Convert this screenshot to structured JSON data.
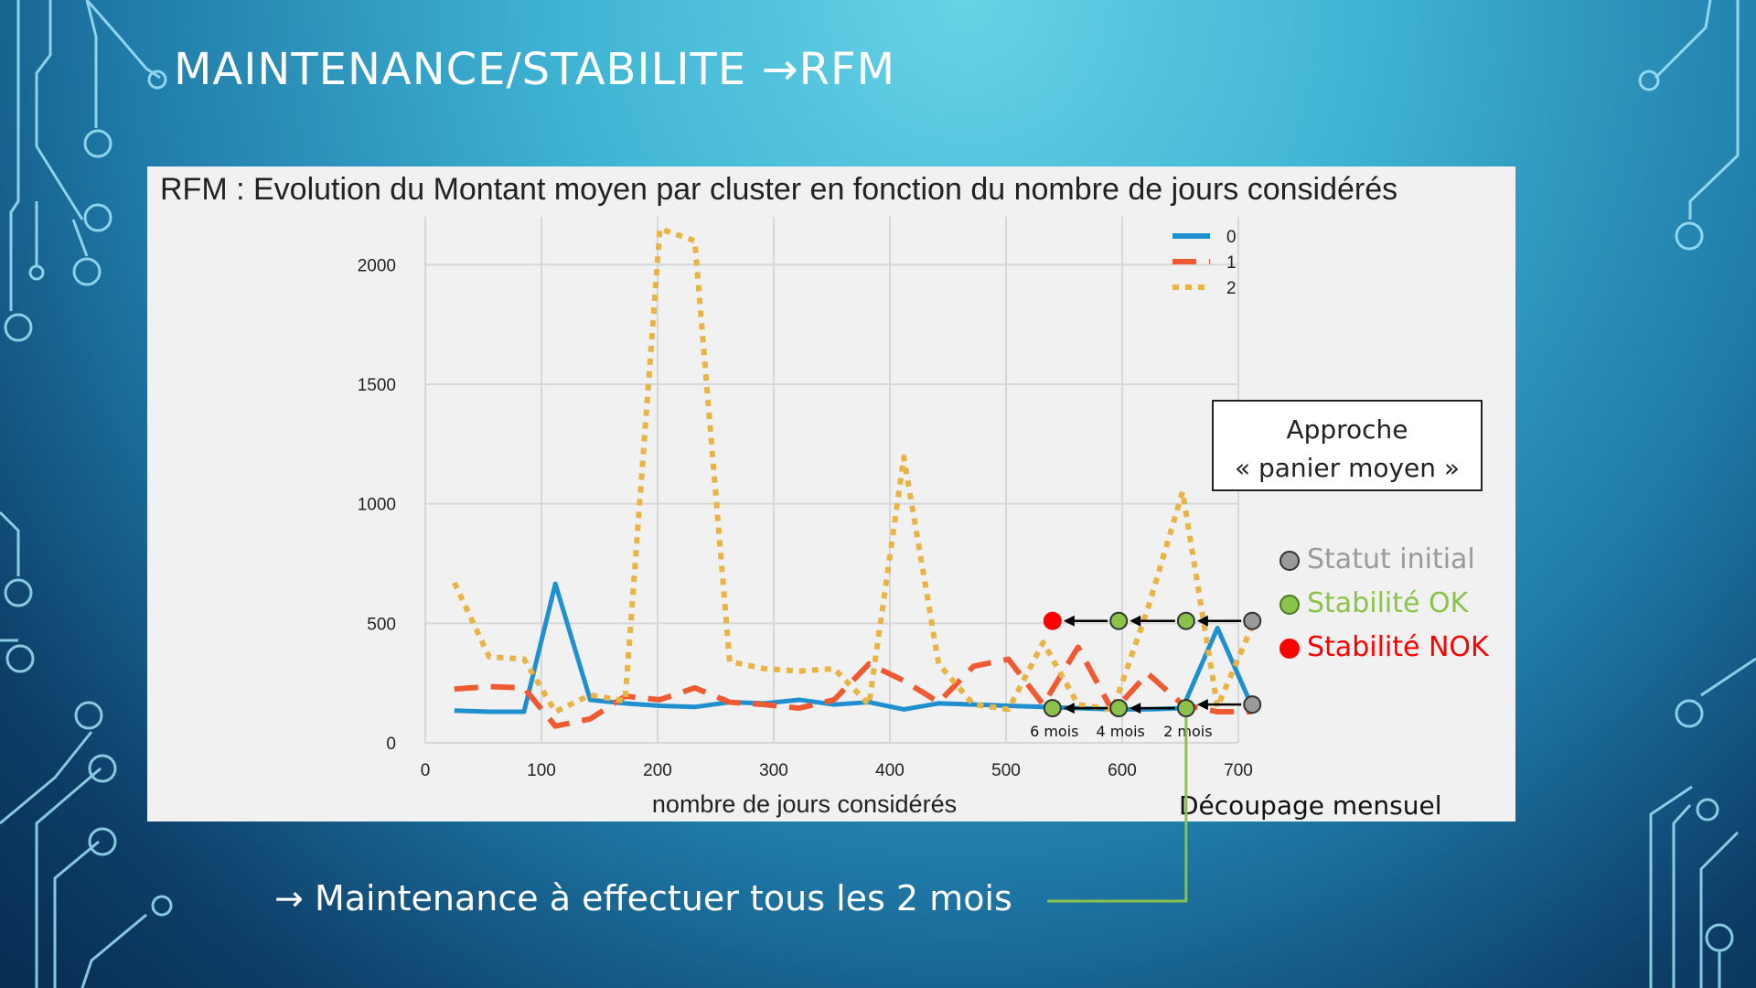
{
  "slide": {
    "title": "MAINTENANCE/STABILITE →RFM",
    "conclusion_arrow": "→",
    "conclusion_text": "Maintenance à effectuer tous les 2 mois"
  },
  "annotations": {
    "approach_line1": "Approche",
    "approach_line2": "« panier moyen »",
    "decoupage": "Découpage mensuel",
    "status": [
      {
        "label": "Statut initial",
        "color": "#9a9a9a",
        "dot": "#9a9a9a"
      },
      {
        "label": "Stabilité OK",
        "color": "#8bc34a",
        "dot": "#8bc34a"
      },
      {
        "label": "Stabilité NOK",
        "color": "#ff0000",
        "dot": "#ff0000"
      }
    ],
    "month_labels": [
      "6 mois",
      "4 mois",
      "2 mois"
    ],
    "colors": {
      "ok": "#8bc34a",
      "nok": "#ff0000",
      "initial": "#9a9a9a",
      "connector": "#8bc34a"
    }
  },
  "chart_data": {
    "type": "line",
    "title": "RFM : Evolution du Montant moyen par cluster en fonction du nombre de jours considérés",
    "xlabel": "nombre de jours considérés",
    "ylabel": "",
    "xlim": [
      0,
      700
    ],
    "ylim": [
      0,
      2200
    ],
    "xticks": [
      0,
      100,
      200,
      300,
      400,
      500,
      600,
      700
    ],
    "yticks": [
      0,
      500,
      1000,
      1500,
      2000
    ],
    "grid": true,
    "legend_position": "top-right",
    "x": [
      25,
      55,
      85,
      112,
      142,
      172,
      202,
      232,
      262,
      292,
      322,
      352,
      382,
      412,
      442,
      472,
      502,
      532,
      562,
      592,
      622,
      652,
      682,
      712
    ],
    "series": [
      {
        "name": "0",
        "color": "#1f8fcf",
        "style": "solid",
        "values": [
          135,
          130,
          130,
          665,
          180,
          165,
          155,
          150,
          170,
          165,
          180,
          160,
          170,
          140,
          165,
          160,
          155,
          150,
          145,
          140,
          140,
          145,
          480,
          150
        ]
      },
      {
        "name": "1",
        "color": "#f05a32",
        "style": "dashed",
        "values": [
          225,
          235,
          230,
          70,
          100,
          195,
          180,
          230,
          170,
          160,
          145,
          180,
          330,
          260,
          170,
          320,
          350,
          160,
          400,
          130,
          290,
          160,
          130,
          130
        ]
      },
      {
        "name": "2",
        "color": "#e8b445",
        "style": "dotted",
        "values": [
          670,
          360,
          350,
          130,
          200,
          175,
          2150,
          2100,
          340,
          310,
          300,
          310,
          160,
          1195,
          330,
          160,
          140,
          420,
          160,
          140,
          560,
          1050,
          150,
          490
        ]
      }
    ],
    "markers": {
      "top": [
        {
          "x": 540,
          "y": 510,
          "status": "nok"
        },
        {
          "x": 597,
          "y": 510,
          "status": "ok"
        },
        {
          "x": 655,
          "y": 510,
          "status": "ok"
        },
        {
          "x": 712,
          "y": 510,
          "status": "initial"
        }
      ],
      "bottom": [
        {
          "x": 540,
          "y": 145,
          "status": "ok"
        },
        {
          "x": 597,
          "y": 145,
          "status": "ok"
        },
        {
          "x": 655,
          "y": 145,
          "status": "ok"
        },
        {
          "x": 712,
          "y": 160,
          "status": "initial"
        }
      ]
    }
  }
}
